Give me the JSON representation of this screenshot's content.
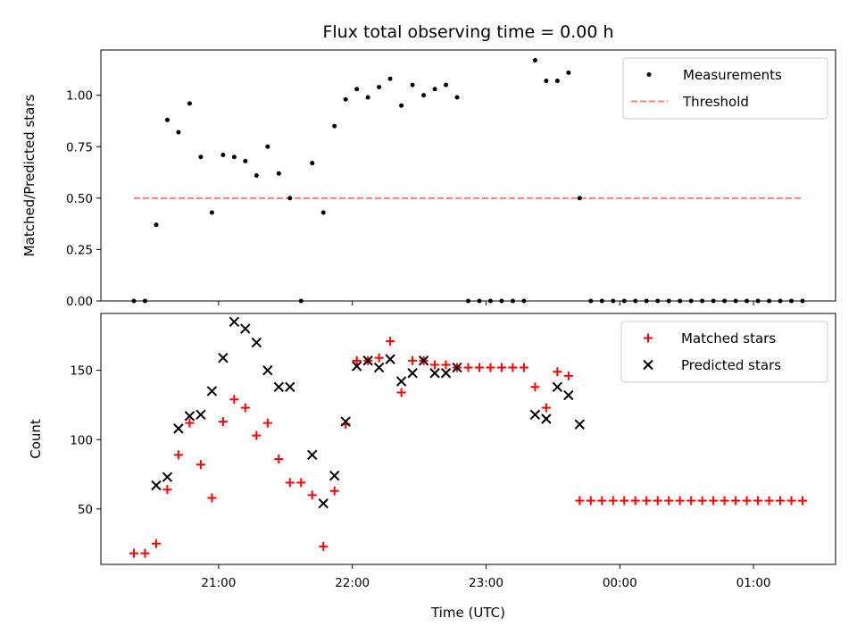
{
  "chart_data": [
    {
      "type": "scatter",
      "title": "Flux total observing time = 0.00 h",
      "xlabel": "",
      "ylabel": "Matched/Predicted stars",
      "ylim": [
        0,
        1.22
      ],
      "y_ticks": [
        "0.00",
        "0.25",
        "0.50",
        "0.75",
        "1.00"
      ],
      "legend_position": "top-right",
      "series": [
        {
          "name": "Measurements",
          "marker": "dot",
          "color": "#000000",
          "points": [
            [
              "20:22",
              0.0
            ],
            [
              "20:27",
              0.0
            ],
            [
              "20:32",
              0.37
            ],
            [
              "20:37",
              0.88
            ],
            [
              "20:42",
              0.82
            ],
            [
              "20:47",
              0.96
            ],
            [
              "20:52",
              0.7
            ],
            [
              "20:57",
              0.43
            ],
            [
              "21:02",
              0.71
            ],
            [
              "21:07",
              0.7
            ],
            [
              "21:12",
              0.68
            ],
            [
              "21:17",
              0.61
            ],
            [
              "21:22",
              0.75
            ],
            [
              "21:27",
              0.62
            ],
            [
              "21:32",
              0.5
            ],
            [
              "21:37",
              0.0
            ],
            [
              "21:42",
              0.67
            ],
            [
              "21:47",
              0.43
            ],
            [
              "21:52",
              0.85
            ],
            [
              "21:57",
              0.98
            ],
            [
              "22:02",
              1.03
            ],
            [
              "22:07",
              0.99
            ],
            [
              "22:12",
              1.04
            ],
            [
              "22:17",
              1.08
            ],
            [
              "22:22",
              0.95
            ],
            [
              "22:27",
              1.05
            ],
            [
              "22:32",
              1.0
            ],
            [
              "22:37",
              1.03
            ],
            [
              "22:42",
              1.05
            ],
            [
              "22:47",
              0.99
            ],
            [
              "22:52",
              0.0
            ],
            [
              "22:57",
              0.0
            ],
            [
              "23:02",
              0.0
            ],
            [
              "23:07",
              0.0
            ],
            [
              "23:12",
              0.0
            ],
            [
              "23:17",
              0.0
            ],
            [
              "23:22",
              1.17
            ],
            [
              "23:27",
              1.07
            ],
            [
              "23:32",
              1.07
            ],
            [
              "23:37",
              1.11
            ],
            [
              "23:42",
              0.5
            ],
            [
              "23:47",
              0.0
            ],
            [
              "23:52",
              0.0
            ],
            [
              "23:57",
              0.0
            ],
            [
              "00:02",
              0.0
            ],
            [
              "00:07",
              0.0
            ],
            [
              "00:12",
              0.0
            ],
            [
              "00:17",
              0.0
            ],
            [
              "00:22",
              0.0
            ],
            [
              "00:27",
              0.0
            ],
            [
              "00:32",
              0.0
            ],
            [
              "00:37",
              0.0
            ],
            [
              "00:42",
              0.0
            ],
            [
              "00:47",
              0.0
            ],
            [
              "00:52",
              0.0
            ],
            [
              "00:57",
              0.0
            ],
            [
              "01:02",
              0.0
            ],
            [
              "01:07",
              0.0
            ],
            [
              "01:12",
              0.0
            ],
            [
              "01:17",
              0.0
            ],
            [
              "01:22",
              0.0
            ]
          ]
        },
        {
          "name": "Threshold",
          "style": "dashed-line",
          "color": "#ff8080",
          "x": [
            "20:22",
            "01:22"
          ],
          "values": [
            0.5,
            0.5
          ]
        }
      ]
    },
    {
      "type": "scatter",
      "title": "",
      "xlabel": "Time (UTC)",
      "ylabel": "Count",
      "ylim": [
        10,
        191
      ],
      "y_ticks": [
        "50",
        "100",
        "150"
      ],
      "x_ticks": [
        "21:00",
        "22:00",
        "23:00",
        "00:00",
        "01:00"
      ],
      "legend_position": "top-right",
      "series": [
        {
          "name": "Matched stars",
          "marker": "plus",
          "color": "#ff0000",
          "points": [
            [
              "20:22",
              18
            ],
            [
              "20:27",
              18
            ],
            [
              "20:32",
              25
            ],
            [
              "20:37",
              64
            ],
            [
              "20:42",
              89
            ],
            [
              "20:47",
              112
            ],
            [
              "20:52",
              82
            ],
            [
              "20:57",
              58
            ],
            [
              "21:02",
              113
            ],
            [
              "21:07",
              129
            ],
            [
              "21:12",
              123
            ],
            [
              "21:17",
              103
            ],
            [
              "21:22",
              112
            ],
            [
              "21:27",
              86
            ],
            [
              "21:32",
              69
            ],
            [
              "21:37",
              69
            ],
            [
              "21:42",
              60
            ],
            [
              "21:47",
              23
            ],
            [
              "21:52",
              63
            ],
            [
              "21:57",
              111
            ],
            [
              "22:02",
              157
            ],
            [
              "22:07",
              157
            ],
            [
              "22:12",
              159
            ],
            [
              "22:17",
              171
            ],
            [
              "22:22",
              134
            ],
            [
              "22:27",
              157
            ],
            [
              "22:32",
              157
            ],
            [
              "22:37",
              154
            ],
            [
              "22:42",
              154
            ],
            [
              "22:47",
              152
            ],
            [
              "22:52",
              152
            ],
            [
              "22:57",
              152
            ],
            [
              "23:02",
              152
            ],
            [
              "23:07",
              152
            ],
            [
              "23:12",
              152
            ],
            [
              "23:17",
              152
            ],
            [
              "23:22",
              138
            ],
            [
              "23:27",
              123
            ],
            [
              "23:32",
              149
            ],
            [
              "23:37",
              146
            ],
            [
              "23:42",
              56
            ],
            [
              "23:47",
              56
            ],
            [
              "23:52",
              56
            ],
            [
              "23:57",
              56
            ],
            [
              "00:02",
              56
            ],
            [
              "00:07",
              56
            ],
            [
              "00:12",
              56
            ],
            [
              "00:17",
              56
            ],
            [
              "00:22",
              56
            ],
            [
              "00:27",
              56
            ],
            [
              "00:32",
              56
            ],
            [
              "00:37",
              56
            ],
            [
              "00:42",
              56
            ],
            [
              "00:47",
              56
            ],
            [
              "00:52",
              56
            ],
            [
              "00:57",
              56
            ],
            [
              "01:02",
              56
            ],
            [
              "01:07",
              56
            ],
            [
              "01:12",
              56
            ],
            [
              "01:17",
              56
            ],
            [
              "01:22",
              56
            ]
          ]
        },
        {
          "name": "Predicted stars",
          "marker": "x",
          "color": "#000000",
          "points": [
            [
              "20:32",
              67
            ],
            [
              "20:37",
              73
            ],
            [
              "20:42",
              108
            ],
            [
              "20:47",
              117
            ],
            [
              "20:52",
              118
            ],
            [
              "20:57",
              135
            ],
            [
              "21:02",
              159
            ],
            [
              "21:07",
              185
            ],
            [
              "21:12",
              180
            ],
            [
              "21:17",
              170
            ],
            [
              "21:22",
              150
            ],
            [
              "21:27",
              138
            ],
            [
              "21:32",
              138
            ],
            [
              "21:42",
              89
            ],
            [
              "21:47",
              54
            ],
            [
              "21:52",
              74
            ],
            [
              "21:57",
              113
            ],
            [
              "22:02",
              153
            ],
            [
              "22:07",
              157
            ],
            [
              "22:12",
              152
            ],
            [
              "22:17",
              158
            ],
            [
              "22:22",
              142
            ],
            [
              "22:27",
              148
            ],
            [
              "22:32",
              157
            ],
            [
              "22:37",
              148
            ],
            [
              "22:42",
              148
            ],
            [
              "22:47",
              152
            ],
            [
              "23:22",
              118
            ],
            [
              "23:27",
              115
            ],
            [
              "23:32",
              138
            ],
            [
              "23:37",
              132
            ],
            [
              "23:42",
              111
            ]
          ]
        }
      ]
    }
  ]
}
